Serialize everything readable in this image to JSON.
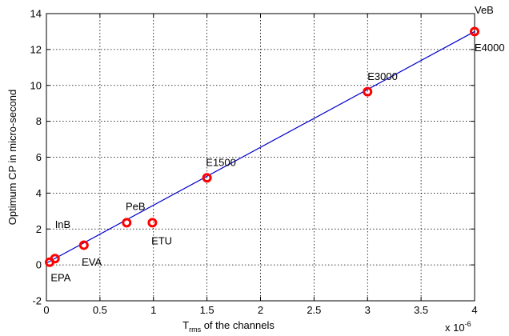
{
  "chart_data": {
    "type": "scatter",
    "title": "",
    "xlabel_main": "T",
    "xlabel_sub": "rms",
    "xlabel_rest": " of the channels",
    "ylabel": "Optimum CP in micro-second",
    "x_exponent_base": "x 10",
    "x_exponent_power": "-6",
    "xlim": [
      0,
      4
    ],
    "ylim": [
      -2,
      14
    ],
    "grid": true,
    "x_ticks": [
      0,
      0.5,
      1,
      1.5,
      2,
      2.5,
      3,
      3.5,
      4
    ],
    "x_tick_labels": [
      "0",
      "0.5",
      "1",
      "1.5",
      "2",
      "2.5",
      "3",
      "3.5",
      "4"
    ],
    "y_ticks": [
      -2,
      0,
      2,
      4,
      6,
      8,
      10,
      12,
      14
    ],
    "y_tick_labels": [
      "-2",
      "0",
      "2",
      "4",
      "6",
      "8",
      "10",
      "12",
      "14"
    ],
    "marker_color": "#ff0000",
    "line_color": "#0000cc",
    "points": [
      {
        "x": 0.03,
        "y": 0.15
      },
      {
        "x": 0.08,
        "y": 0.35
      },
      {
        "x": 0.35,
        "y": 1.1
      },
      {
        "x": 0.75,
        "y": 2.35
      },
      {
        "x": 0.99,
        "y": 2.35
      },
      {
        "x": 1.5,
        "y": 4.85
      },
      {
        "x": 3.0,
        "y": 9.65
      },
      {
        "x": 4.0,
        "y": 13.0
      }
    ],
    "labels": [
      {
        "text": "EPA",
        "x": 0.04,
        "y": -0.9
      },
      {
        "text": "InB",
        "x": 0.08,
        "y": 2.05
      },
      {
        "text": "EVA",
        "x": 0.33,
        "y": -0.05
      },
      {
        "text": "PeB",
        "x": 0.74,
        "y": 3.05
      },
      {
        "text": "ETU",
        "x": 0.98,
        "y": 1.15
      },
      {
        "text": "E1500",
        "x": 1.49,
        "y": 5.5
      },
      {
        "text": "E3000",
        "x": 3.0,
        "y": 10.3
      },
      {
        "text": "VeB",
        "x": 4.0,
        "y": 14.0
      },
      {
        "text": "E4000",
        "x": 4.0,
        "y": 11.9
      }
    ],
    "fit_line": {
      "x": [
        0,
        4
      ],
      "y": [
        0.1,
        13.0
      ]
    }
  }
}
